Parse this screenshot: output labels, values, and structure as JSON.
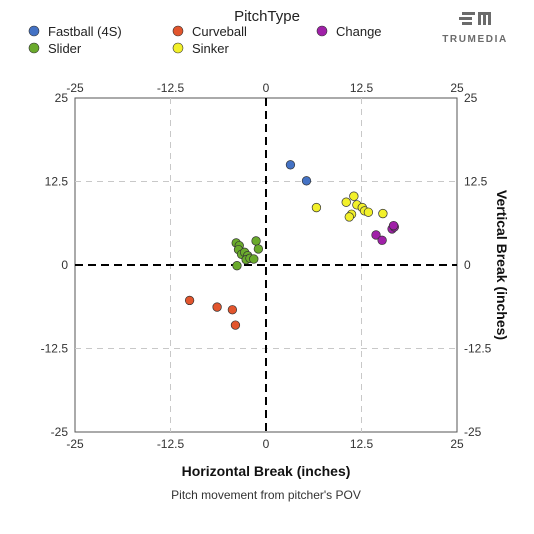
{
  "brand": {
    "name": "TRUMEDIA"
  },
  "legend": {
    "title": "PitchType",
    "items": [
      {
        "label": "Fastball (4S)",
        "color": "#4472c4"
      },
      {
        "label": "Curveball",
        "color": "#e2552d"
      },
      {
        "label": "Change",
        "color": "#a020a8"
      },
      {
        "label": "Slider",
        "color": "#6aaa2c"
      },
      {
        "label": "Sinker",
        "color": "#f2f02a"
      }
    ]
  },
  "chart_data": {
    "type": "scatter",
    "title": "",
    "subtitle": "Pitch movement from pitcher's POV",
    "xlabel": "Horizontal Break (inches)",
    "ylabel": "Vertical Break (inches)",
    "xlim": [
      -25,
      25
    ],
    "ylim": [
      -25,
      25
    ],
    "xticks": [
      "-25",
      "-12.5",
      "0",
      "12.5",
      "25"
    ],
    "yticks": [
      "25",
      "12.5",
      "0",
      "-12.5",
      "-25"
    ],
    "grid": true,
    "legend_position": "top",
    "series": [
      {
        "name": "Fastball (4S)",
        "color": "#4472c4",
        "points": [
          [
            3.2,
            15.0
          ],
          [
            5.3,
            12.6
          ]
        ]
      },
      {
        "name": "Curveball",
        "color": "#e2552d",
        "points": [
          [
            -10.0,
            -5.3
          ],
          [
            -6.4,
            -6.3
          ],
          [
            -4.4,
            -6.7
          ],
          [
            -4.0,
            -9.0
          ]
        ]
      },
      {
        "name": "Change",
        "color": "#a020a8",
        "points": [
          [
            14.4,
            4.5
          ],
          [
            15.2,
            3.7
          ],
          [
            16.5,
            5.4
          ],
          [
            16.8,
            5.7
          ],
          [
            16.7,
            5.9
          ]
        ]
      },
      {
        "name": "Slider",
        "color": "#6aaa2c",
        "points": [
          [
            -3.9,
            3.3
          ],
          [
            -3.5,
            2.9
          ],
          [
            -3.6,
            2.3
          ],
          [
            -3.2,
            1.6
          ],
          [
            -2.8,
            1.9
          ],
          [
            -2.4,
            1.4
          ],
          [
            -2.6,
            0.8
          ],
          [
            -2.1,
            1.0
          ],
          [
            -1.3,
            3.6
          ],
          [
            -1.0,
            2.4
          ],
          [
            -1.6,
            0.9
          ],
          [
            -3.8,
            -0.1
          ]
        ]
      },
      {
        "name": "Sinker",
        "color": "#f2f02a",
        "points": [
          [
            6.6,
            8.6
          ],
          [
            10.5,
            9.4
          ],
          [
            11.5,
            10.3
          ],
          [
            11.9,
            9.0
          ],
          [
            12.6,
            8.6
          ],
          [
            11.2,
            7.6
          ],
          [
            10.9,
            7.2
          ],
          [
            12.9,
            8.1
          ],
          [
            13.4,
            7.9
          ],
          [
            15.3,
            7.7
          ]
        ]
      }
    ]
  }
}
